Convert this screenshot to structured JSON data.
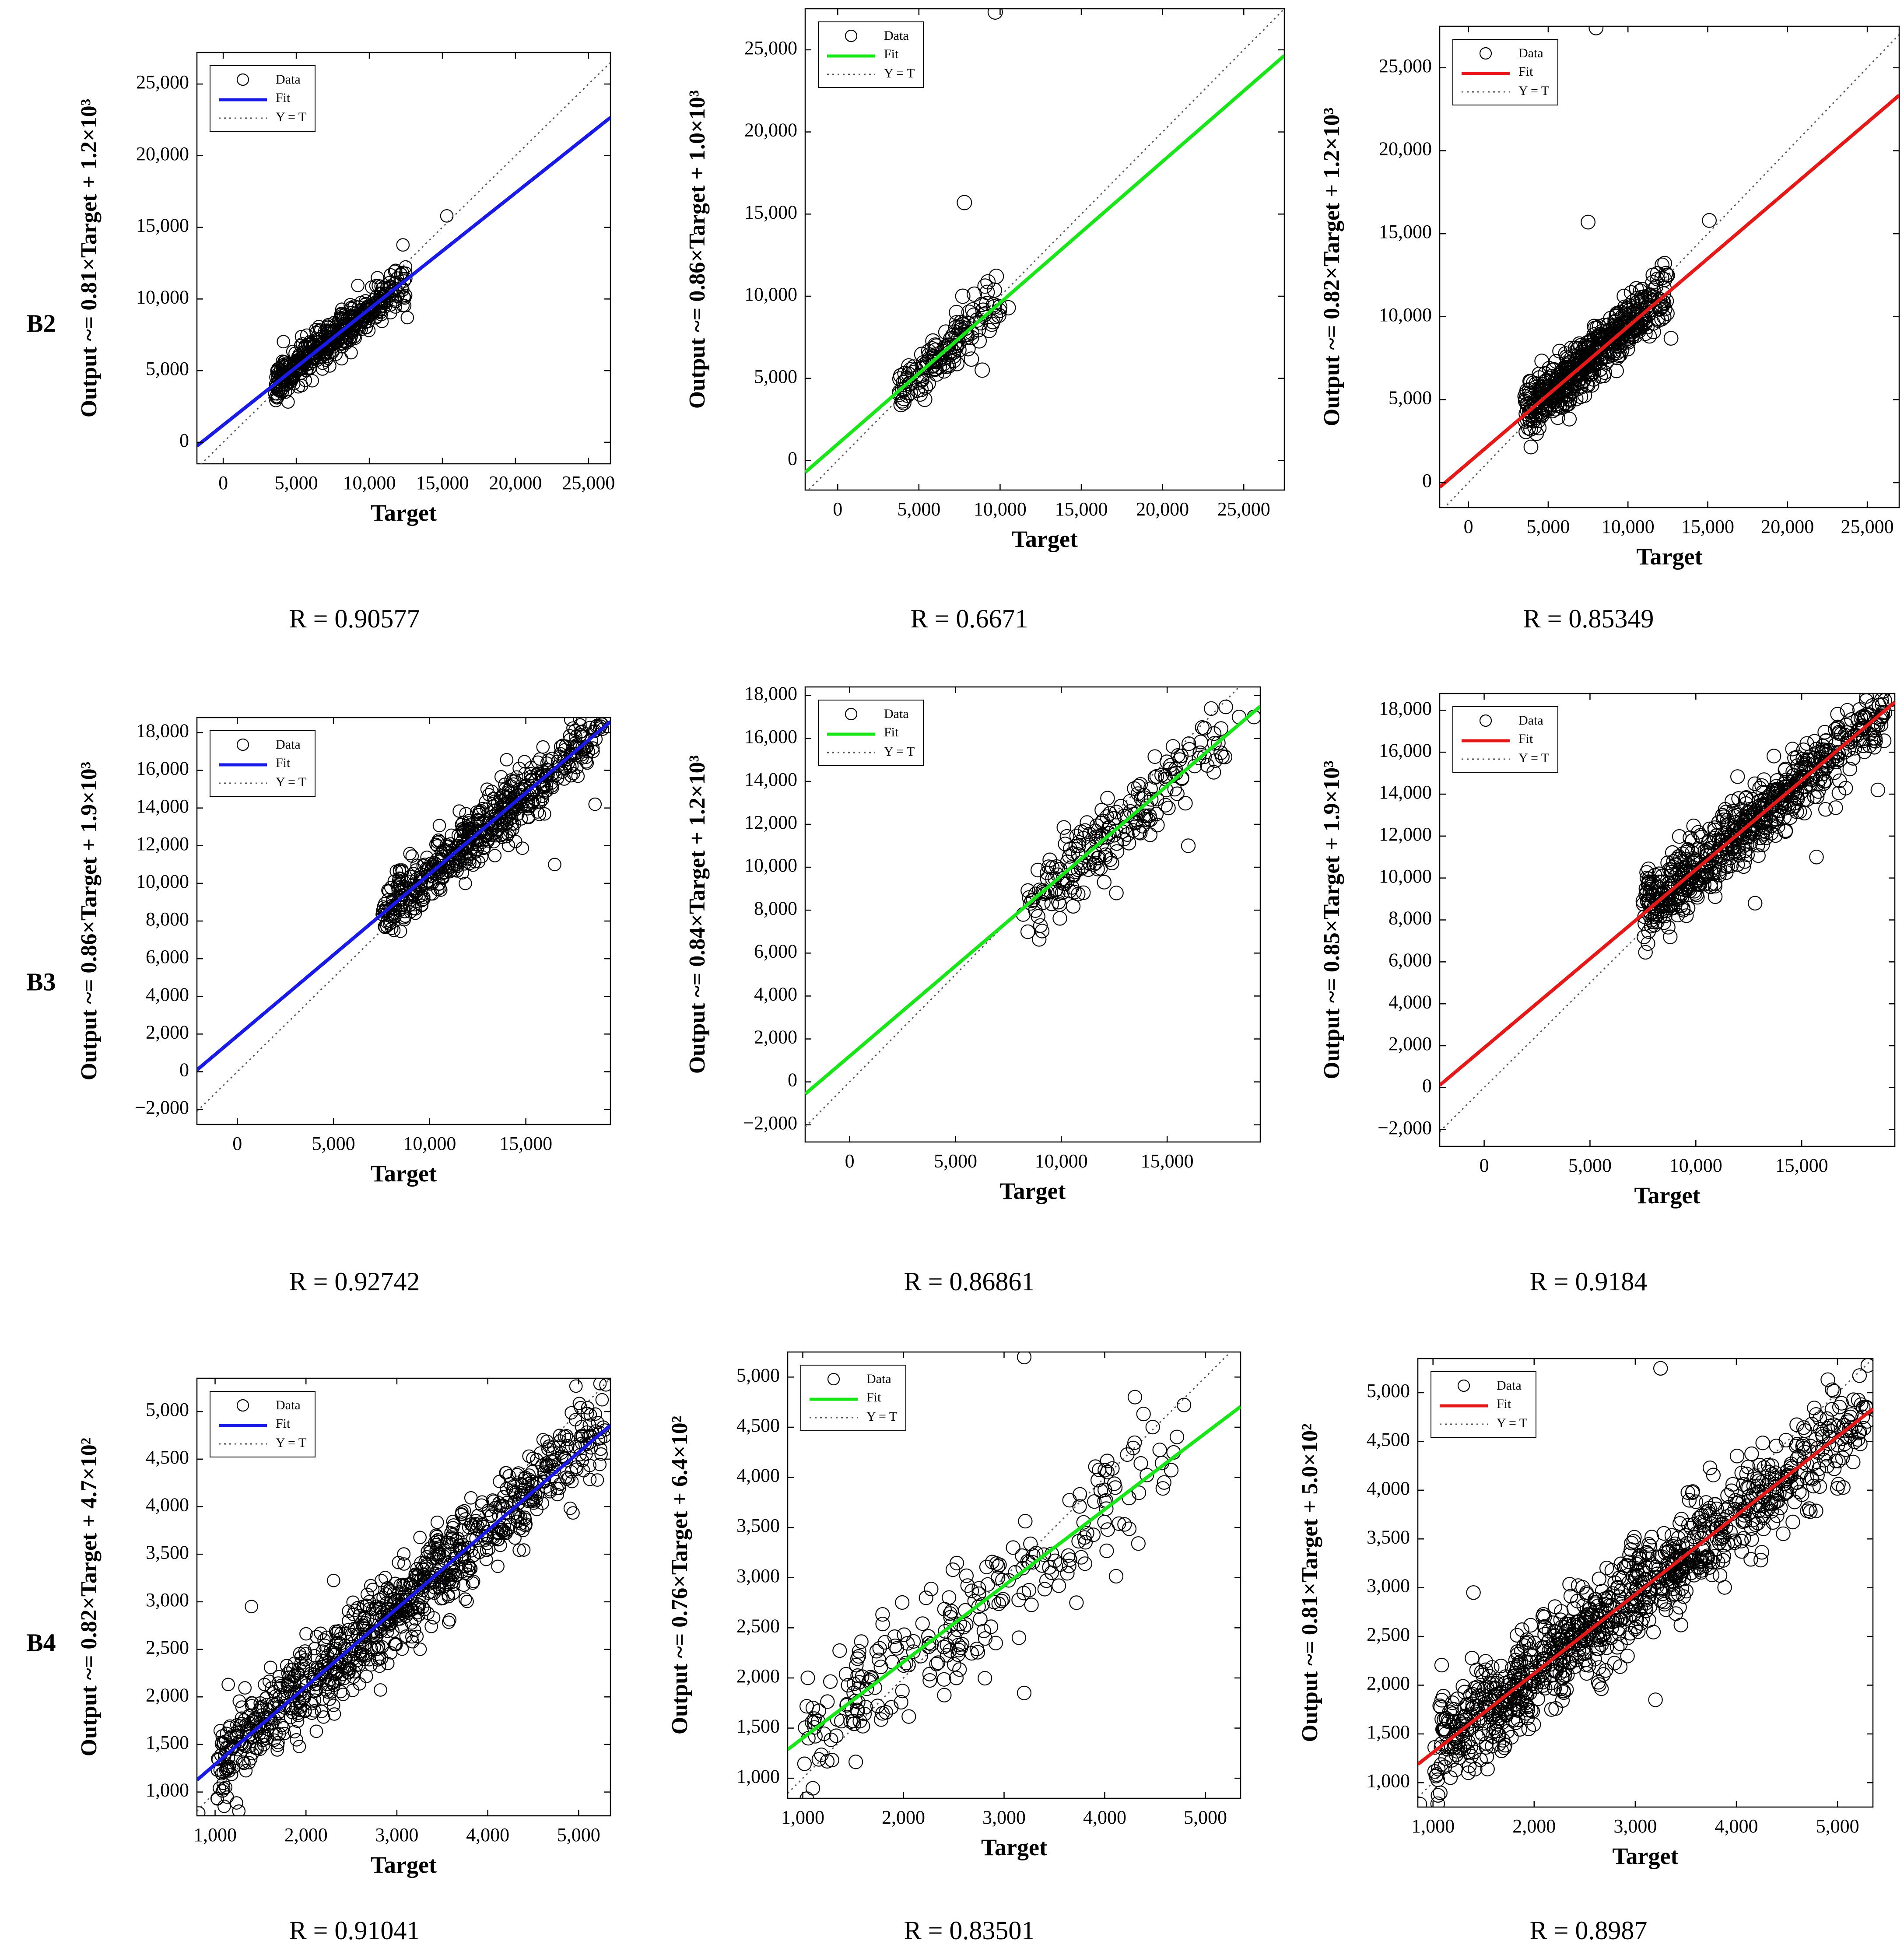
{
  "figure": {
    "row_labels": [
      "B2",
      "B3",
      "B4"
    ],
    "legend_labels": {
      "data": "Data",
      "fit": "Fit",
      "identity": "Y = T"
    },
    "fit_colors": [
      "#1a1ae6",
      "#19e619",
      "#e61919"
    ],
    "marker": "circle-icon"
  },
  "chart_data": [
    {
      "type": "scatter",
      "row": "B2",
      "xlabel": "Target",
      "ylabel": "Output ~= 0.81×Target + 1.2×10³",
      "r_text": "R = 0.90577",
      "xlim": [
        -1800,
        26500
      ],
      "ylim": [
        -1500,
        27200
      ],
      "xticks": [
        0,
        5000,
        10000,
        15000,
        20000,
        25000
      ],
      "yticks": [
        0,
        5000,
        10000,
        15000,
        20000,
        25000
      ],
      "tick_labels_x": [
        "0",
        "5,000",
        "10,000",
        "15,000",
        "20,000",
        "25,000"
      ],
      "tick_labels_y": [
        "0",
        "5,000",
        "10,000",
        "15,000",
        "20,000",
        "25,000"
      ],
      "fit": {
        "slope": 0.81,
        "intercept": 1200
      },
      "cloud": {
        "n": 460,
        "xmin": 3500,
        "xmax": 12500,
        "sd": 700,
        "seed": 11
      },
      "outliers": [
        [
          15300,
          15800
        ],
        [
          12600,
          8700
        ],
        [
          11800,
          12000
        ]
      ],
      "legend": "top-left",
      "grid": false
    },
    {
      "type": "scatter",
      "row": "B2",
      "xlabel": "Target",
      "ylabel": "Output ~= 0.86×Target + 1.0×10³",
      "r_text": "R = 0.6671",
      "xlim": [
        -2000,
        27500
      ],
      "ylim": [
        -1800,
        27500
      ],
      "xticks": [
        0,
        5000,
        10000,
        15000,
        20000,
        25000
      ],
      "yticks": [
        0,
        5000,
        10000,
        15000,
        20000,
        25000
      ],
      "tick_labels_x": [
        "0",
        "5,000",
        "10,000",
        "15,000",
        "20,000",
        "25,000"
      ],
      "tick_labels_y": [
        "0",
        "5,000",
        "10,000",
        "15,000",
        "20,000",
        "25,000"
      ],
      "fit": {
        "slope": 0.86,
        "intercept": 1000
      },
      "cloud": {
        "n": 140,
        "xmin": 3800,
        "xmax": 10500,
        "sd": 750,
        "seed": 23
      },
      "outliers": [
        [
          7800,
          15700
        ],
        [
          9700,
          27300
        ],
        [
          10500,
          9300
        ],
        [
          8900,
          5500
        ],
        [
          7700,
          10000
        ]
      ],
      "legend": "top-left",
      "grid": false
    },
    {
      "type": "scatter",
      "row": "B2",
      "xlabel": "Target",
      "ylabel": "Output ~= 0.82×Target + 1.2×10³",
      "r_text": "R = 0.85349",
      "xlim": [
        -1800,
        27000
      ],
      "ylim": [
        -1500,
        27500
      ],
      "xticks": [
        0,
        5000,
        10000,
        15000,
        20000,
        25000
      ],
      "yticks": [
        0,
        5000,
        10000,
        15000,
        20000,
        25000
      ],
      "tick_labels_x": [
        "0",
        "5,000",
        "10,000",
        "15,000",
        "20,000",
        "25,000"
      ],
      "tick_labels_y": [
        "0",
        "5,000",
        "10,000",
        "15,000",
        "20,000",
        "25,000"
      ],
      "fit": {
        "slope": 0.82,
        "intercept": 1200
      },
      "cloud": {
        "n": 560,
        "xmin": 3500,
        "xmax": 12500,
        "sd": 850,
        "seed": 37
      },
      "outliers": [
        [
          7500,
          15700
        ],
        [
          15100,
          15800
        ],
        [
          12700,
          8700
        ],
        [
          8000,
          27400
        ]
      ],
      "legend": "top-left",
      "grid": false
    },
    {
      "type": "scatter",
      "row": "B3",
      "xlabel": "Target",
      "ylabel": "Output ~= 0.86×Target + 1.9×10³",
      "r_text": "R = 0.92742",
      "xlim": [
        -2100,
        19400
      ],
      "ylim": [
        -2800,
        18800
      ],
      "xticks": [
        0,
        5000,
        10000,
        15000
      ],
      "yticks": [
        -2000,
        0,
        2000,
        4000,
        6000,
        8000,
        10000,
        12000,
        14000,
        16000,
        18000
      ],
      "tick_labels_x": [
        "0",
        "5,000",
        "10,000",
        "15,000"
      ],
      "tick_labels_y": [
        "−2,000",
        "0",
        "2,000",
        "4,000",
        "6,000",
        "8,000",
        "10,000",
        "12,000",
        "14,000",
        "16,000",
        "18,000"
      ],
      "fit": {
        "slope": 0.86,
        "intercept": 1900
      },
      "cloud": {
        "n": 560,
        "xmin": 7500,
        "xmax": 19000,
        "sd": 750,
        "seed": 41
      },
      "outliers": [
        [
          18900,
          18500
        ],
        [
          18600,
          14200
        ],
        [
          16500,
          11000
        ]
      ],
      "legend": "top-left",
      "grid": false
    },
    {
      "type": "scatter",
      "row": "B3",
      "xlabel": "Target",
      "ylabel": "Output ~= 0.84×Target + 1.2×10³",
      "r_text": "R = 0.86861",
      "xlim": [
        -2100,
        19400
      ],
      "ylim": [
        -2800,
        18400
      ],
      "xticks": [
        0,
        5000,
        10000,
        15000
      ],
      "yticks": [
        -2000,
        0,
        2000,
        4000,
        6000,
        8000,
        10000,
        12000,
        14000,
        16000,
        18000
      ],
      "tick_labels_x": [
        "0",
        "5,000",
        "10,000",
        "15,000"
      ],
      "tick_labels_y": [
        "−2,000",
        "0",
        "2,000",
        "4,000",
        "6,000",
        "8,000",
        "10,000",
        "12,000",
        "14,000",
        "16,000",
        "18,000"
      ],
      "fit": {
        "slope": 0.84,
        "intercept": 1200
      },
      "cloud": {
        "n": 200,
        "xmin": 8200,
        "xmax": 17800,
        "sd": 900,
        "seed": 53
      },
      "outliers": [
        [
          8200,
          7800
        ],
        [
          12600,
          8800
        ],
        [
          16000,
          11000
        ],
        [
          19100,
          17000
        ],
        [
          18400,
          17000
        ]
      ],
      "legend": "top-left",
      "grid": false
    },
    {
      "type": "scatter",
      "row": "B3",
      "xlabel": "Target",
      "ylabel": "Output ~= 0.85×Target + 1.9×10³",
      "r_text": "R = 0.9184",
      "xlim": [
        -2100,
        19400
      ],
      "ylim": [
        -2800,
        18800
      ],
      "xticks": [
        0,
        5000,
        10000,
        15000
      ],
      "yticks": [
        -2000,
        0,
        2000,
        4000,
        6000,
        8000,
        10000,
        12000,
        14000,
        16000,
        18000
      ],
      "tick_labels_x": [
        "0",
        "5,000",
        "10,000",
        "15,000"
      ],
      "tick_labels_y": [
        "−2,000",
        "0",
        "2,000",
        "4,000",
        "6,000",
        "8,000",
        "10,000",
        "12,000",
        "14,000",
        "16,000",
        "18,000"
      ],
      "fit": {
        "slope": 0.85,
        "intercept": 1900
      },
      "cloud": {
        "n": 650,
        "xmin": 7500,
        "xmax": 19000,
        "sd": 800,
        "seed": 67
      },
      "outliers": [
        [
          19200,
          18500
        ],
        [
          18600,
          14200
        ],
        [
          15700,
          11000
        ],
        [
          12800,
          8800
        ]
      ],
      "legend": "top-left",
      "grid": false
    },
    {
      "type": "scatter",
      "row": "B4",
      "xlabel": "Target",
      "ylabel": "Output ~= 0.82×Target + 4.7×10²",
      "r_text": "R = 0.91041",
      "xlim": [
        800,
        5350
      ],
      "ylim": [
        750,
        5350
      ],
      "xticks": [
        1000,
        2000,
        3000,
        4000,
        5000
      ],
      "yticks": [
        1000,
        1500,
        2000,
        2500,
        3000,
        3500,
        4000,
        4500,
        5000
      ],
      "tick_labels_x": [
        "1,000",
        "2,000",
        "3,000",
        "4,000",
        "5,000"
      ],
      "tick_labels_y": [
        "1,000",
        "1,500",
        "2,000",
        "2,500",
        "3,000",
        "3,500",
        "4,000",
        "4,500",
        "5,000"
      ],
      "fit": {
        "slope": 0.82,
        "intercept": 470
      },
      "cloud": {
        "n": 900,
        "xmin": 1000,
        "xmax": 5300,
        "sd": 230,
        "seed": 71
      },
      "outliers": [
        [
          1400,
          2950
        ],
        [
          5300,
          5280
        ],
        [
          1100,
          850
        ],
        [
          820,
          780
        ]
      ],
      "legend": "top-left",
      "grid": false
    },
    {
      "type": "scatter",
      "row": "B4",
      "xlabel": "Target",
      "ylabel": "Output ~= 0.76×Target + 6.4×10²",
      "r_text": "R = 0.83501",
      "xlim": [
        850,
        5350
      ],
      "ylim": [
        800,
        5250
      ],
      "xticks": [
        1000,
        2000,
        3000,
        4000,
        5000
      ],
      "yticks": [
        1000,
        1500,
        2000,
        2500,
        3000,
        3500,
        4000,
        4500,
        5000
      ],
      "tick_labels_x": [
        "1,000",
        "2,000",
        "3,000",
        "4,000",
        "5,000"
      ],
      "tick_labels_y": [
        "1,000",
        "1,500",
        "2,000",
        "2,500",
        "3,000",
        "3,500",
        "4,000",
        "4,500",
        "5,000"
      ],
      "fit": {
        "slope": 0.76,
        "intercept": 640
      },
      "cloud": {
        "n": 240,
        "xmin": 1000,
        "xmax": 4800,
        "sd": 300,
        "seed": 83
      },
      "outliers": [
        [
          3200,
          5200
        ],
        [
          4300,
          4800
        ],
        [
          3200,
          1850
        ],
        [
          1100,
          900
        ]
      ],
      "legend": "top-left",
      "grid": false
    },
    {
      "type": "scatter",
      "row": "B4",
      "xlabel": "Target",
      "ylabel": "Output ~= 0.81×Target + 5.0×10²",
      "r_text": "R = 0.8987",
      "xlim": [
        850,
        5350
      ],
      "ylim": [
        750,
        5350
      ],
      "xticks": [
        1000,
        2000,
        3000,
        4000,
        5000
      ],
      "yticks": [
        1000,
        1500,
        2000,
        2500,
        3000,
        3500,
        4000,
        4500,
        5000
      ],
      "tick_labels_x": [
        "1,000",
        "2,000",
        "3,000",
        "4,000",
        "5,000"
      ],
      "tick_labels_y": [
        "1,000",
        "1,500",
        "2,000",
        "2,500",
        "3,000",
        "3,500",
        "4,000",
        "4,500",
        "5,000"
      ],
      "fit": {
        "slope": 0.81,
        "intercept": 500
      },
      "cloud": {
        "n": 1000,
        "xmin": 1000,
        "xmax": 5300,
        "sd": 250,
        "seed": 97
      },
      "outliers": [
        [
          3250,
          5250
        ],
        [
          1400,
          2950
        ],
        [
          3200,
          1850
        ],
        [
          5300,
          5280
        ],
        [
          1050,
          870
        ],
        [
          870,
          780
        ]
      ],
      "legend": "top-left",
      "grid": false
    }
  ]
}
